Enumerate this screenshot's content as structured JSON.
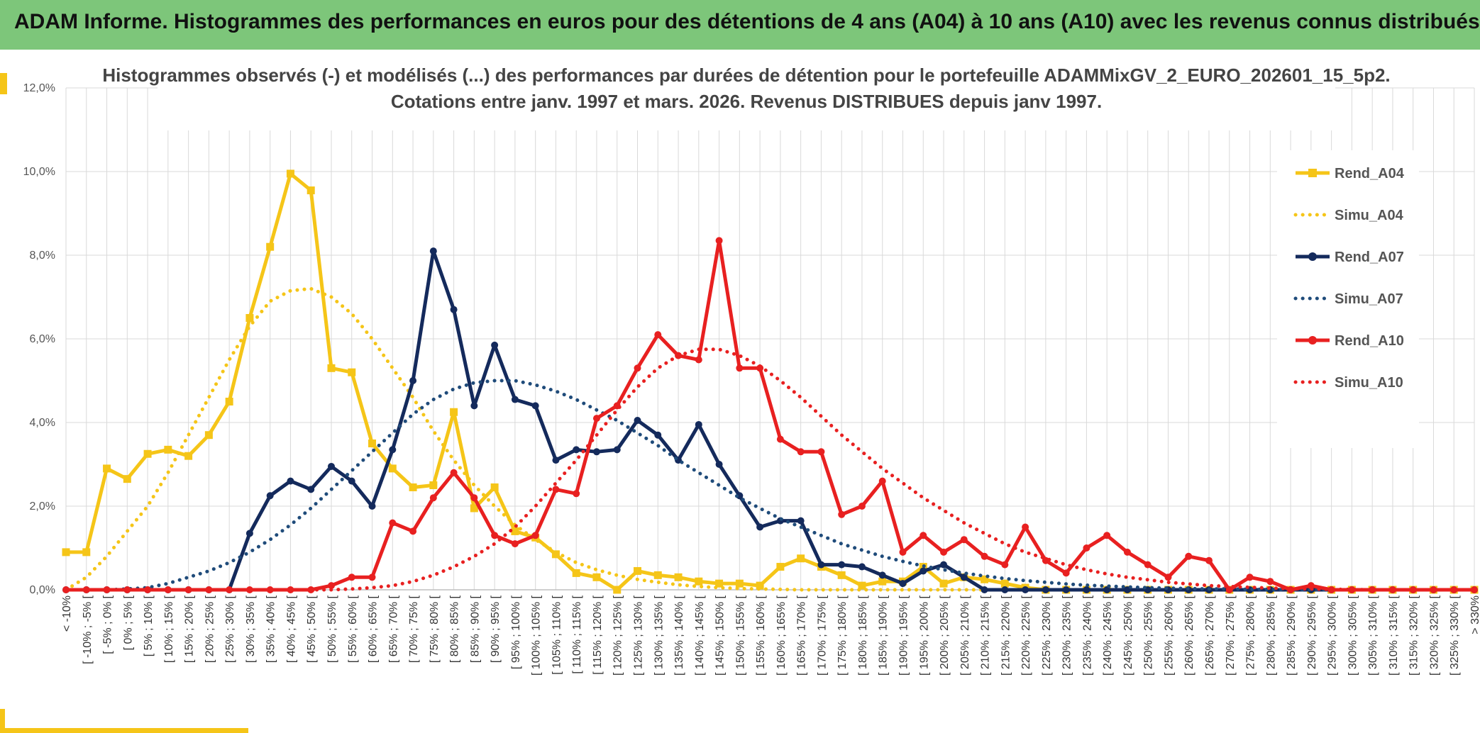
{
  "header": {
    "title": "ADAM Informe. Histogrammes des performances en euros pour des détentions de 4 ans (A04) à 10 ans (A10) avec les revenus connus distribués"
  },
  "chart_data": {
    "type": "line",
    "title": "Histogrammes observés (-) et modélisés (...) des performances par durées de détention pour le portefeuille ADAMMixGV_2_EURO_202601_15_5p2.",
    "subtitle": "Cotations entre janv. 1997 et mars. 2026. Revenus DISTRIBUES depuis janv 1997.",
    "ylim": [
      0,
      12
    ],
    "yticks": [
      "0,0%",
      "2,0%",
      "4,0%",
      "6,0%",
      "8,0%",
      "10,0%",
      "12,0%"
    ],
    "grid": true,
    "legend_position": "right",
    "categories": [
      "< -10%",
      "[ -10% ; -5% [",
      "[ -5% ; 0% [",
      "[ 0% ; 5% [",
      "[ 5% ; 10% [",
      "[ 10% ; 15% [",
      "[ 15% ; 20% [",
      "[ 20% ; 25% [",
      "[ 25% ; 30% [",
      "[ 30% ; 35% [",
      "[ 35% ; 40% [",
      "[ 40% ; 45% [",
      "[ 45% ; 50% [",
      "[ 50% ; 55% [",
      "[ 55% ; 60% [",
      "[ 60% ; 65% [",
      "[ 65% ; 70% [",
      "[ 70% ; 75% [",
      "[ 75% ; 80% [",
      "[ 80% ; 85% [",
      "[ 85% ; 90% [",
      "[ 90% ; 95% [",
      "[ 95% ; 100% [",
      "[ 100% ; 105% [",
      "[ 105% ; 110% [",
      "[ 110% ; 115% [",
      "[ 115% ; 120% [",
      "[ 120% ; 125% [",
      "[ 125% ; 130% [",
      "[ 130% ; 135% [",
      "[ 135% ; 140% [",
      "[ 140% ; 145% [",
      "[ 145% ; 150% [",
      "[ 150% ; 155% [",
      "[ 155% ; 160% [",
      "[ 160% ; 165% [",
      "[ 165% ; 170% [",
      "[ 170% ; 175% [",
      "[ 175% ; 180% [",
      "[ 180% ; 185% [",
      "[ 185% ; 190% [",
      "[ 190% ; 195% [",
      "[ 195% ; 200% [",
      "[ 200% ; 205% [",
      "[ 205% ; 210% [",
      "[ 210% ; 215% [",
      "[ 215% ; 220% [",
      "[ 220% ; 225% [",
      "[ 225% ; 230% [",
      "[ 230% ; 235% [",
      "[ 235% ; 240% [",
      "[ 240% ; 245% [",
      "[ 245% ; 250% [",
      "[ 250% ; 255% [",
      "[ 255% ; 260% [",
      "[ 260% ; 265% [",
      "[ 265% ; 270% [",
      "[ 270% ; 275% [",
      "[ 275% ; 280% [",
      "[ 280% ; 285% [",
      "[ 285% ; 290% [",
      "[ 290% ; 295% [",
      "[ 295% ; 300% [",
      "[ 300% ; 305% [",
      "[ 305% ; 310% [",
      "[ 310% ; 315% [",
      "[ 315% ; 320% [",
      "[ 320% ; 325% [",
      "[ 325% ; 330% [",
      "> 330%"
    ],
    "series": [
      {
        "name": "Rend_A04",
        "style": "solid",
        "marker": "square",
        "color": "#f5c518",
        "values": [
          0.9,
          0.9,
          2.9,
          2.65,
          3.25,
          3.35,
          3.2,
          3.7,
          4.5,
          6.5,
          8.2,
          9.95,
          9.55,
          5.3,
          5.2,
          3.5,
          2.9,
          2.45,
          2.5,
          4.25,
          1.95,
          2.45,
          1.4,
          1.25,
          0.85,
          0.4,
          0.3,
          0.0,
          0.45,
          0.35,
          0.3,
          0.2,
          0.15,
          0.15,
          0.1,
          0.55,
          0.75,
          0.55,
          0.35,
          0.1,
          0.2,
          0.2,
          0.55,
          0.15,
          0.3,
          0.25,
          0.15,
          0.05,
          0.0,
          0.0,
          0.0,
          0.0,
          0.0,
          0.0,
          0.0,
          0.0,
          0.0,
          0.0,
          0.0,
          0.0,
          0.0,
          0.0,
          0.0,
          0.0,
          0.0,
          0.0,
          0.0,
          0.0,
          0.0,
          0.0
        ]
      },
      {
        "name": "Simu_A04",
        "style": "dotted",
        "marker": "none",
        "color": "#f5c518",
        "values": [
          0.0,
          0.3,
          0.8,
          1.4,
          2.0,
          2.8,
          3.7,
          4.6,
          5.5,
          6.3,
          6.9,
          7.15,
          7.2,
          7.0,
          6.6,
          6.0,
          5.3,
          4.6,
          3.8,
          3.1,
          2.5,
          2.0,
          1.55,
          1.2,
          0.9,
          0.65,
          0.48,
          0.35,
          0.25,
          0.18,
          0.12,
          0.08,
          0.05,
          0.03,
          0.02,
          0.01,
          0.0,
          0.0,
          0.0,
          0.0,
          0.0,
          0.0,
          0.0,
          0.0,
          0.0,
          0.0,
          0.0,
          0.0,
          0.0,
          0.0,
          0.0,
          0.0,
          0.0,
          0.0,
          0.0,
          0.0,
          0.0,
          0.0,
          0.0,
          0.0,
          0.0,
          0.0,
          0.0,
          0.0,
          0.0,
          0.0,
          0.0,
          0.0,
          0.0,
          0.0
        ]
      },
      {
        "name": "Rend_A07",
        "style": "solid",
        "marker": "circle",
        "color": "#142a5c",
        "values": [
          0.0,
          0.0,
          0.0,
          0.0,
          0.0,
          0.0,
          0.0,
          0.0,
          0.0,
          1.35,
          2.25,
          2.6,
          2.4,
          2.95,
          2.6,
          2.0,
          3.35,
          5.0,
          8.1,
          6.7,
          4.4,
          5.85,
          4.55,
          4.4,
          3.1,
          3.35,
          3.3,
          3.35,
          4.05,
          3.7,
          3.1,
          3.95,
          3.0,
          2.25,
          1.5,
          1.65,
          1.65,
          0.6,
          0.6,
          0.55,
          0.35,
          0.15,
          0.45,
          0.6,
          0.3,
          0.0,
          0.0,
          0.0,
          0.0,
          0.0,
          0.0,
          0.0,
          0.0,
          0.0,
          0.0,
          0.0,
          0.0,
          0.0,
          0.0,
          0.0,
          0.0,
          0.0,
          0.0,
          0.0,
          0.0,
          0.0,
          0.0,
          0.0,
          0.0,
          0.0
        ]
      },
      {
        "name": "Simu_A07",
        "style": "dotted",
        "marker": "none",
        "color": "#1f4b7a",
        "values": [
          0.0,
          0.0,
          0.0,
          0.02,
          0.05,
          0.15,
          0.3,
          0.45,
          0.65,
          0.9,
          1.2,
          1.55,
          1.95,
          2.4,
          2.85,
          3.3,
          3.75,
          4.2,
          4.55,
          4.8,
          4.95,
          5.0,
          5.0,
          4.9,
          4.75,
          4.55,
          4.3,
          4.05,
          3.75,
          3.45,
          3.1,
          2.8,
          2.5,
          2.2,
          1.95,
          1.7,
          1.5,
          1.3,
          1.1,
          0.95,
          0.8,
          0.68,
          0.57,
          0.48,
          0.4,
          0.33,
          0.27,
          0.22,
          0.18,
          0.14,
          0.11,
          0.09,
          0.07,
          0.05,
          0.04,
          0.03,
          0.02,
          0.02,
          0.01,
          0.01,
          0.0,
          0.0,
          0.0,
          0.0,
          0.0,
          0.0,
          0.0,
          0.0,
          0.0,
          0.0
        ]
      },
      {
        "name": "Rend_A10",
        "style": "solid",
        "marker": "circle",
        "color": "#e82020",
        "values": [
          0.0,
          0.0,
          0.0,
          0.0,
          0.0,
          0.0,
          0.0,
          0.0,
          0.0,
          0.0,
          0.0,
          0.0,
          0.0,
          0.1,
          0.3,
          0.3,
          1.6,
          1.4,
          2.2,
          2.8,
          2.2,
          1.3,
          1.1,
          1.3,
          2.4,
          2.3,
          4.1,
          4.4,
          5.3,
          6.1,
          5.6,
          5.5,
          8.35,
          5.3,
          5.3,
          3.6,
          3.3,
          3.3,
          1.8,
          2.0,
          2.6,
          0.9,
          1.3,
          0.9,
          1.2,
          0.8,
          0.6,
          1.5,
          0.7,
          0.4,
          1.0,
          1.3,
          0.9,
          0.6,
          0.3,
          0.8,
          0.7,
          0.0,
          0.3,
          0.2,
          0.0,
          0.1,
          0.0,
          0.0,
          0.0,
          0.0,
          0.0,
          0.0,
          0.0,
          0.0
        ]
      },
      {
        "name": "Simu_A10",
        "style": "dotted",
        "marker": "none",
        "color": "#e82020",
        "values": [
          0.0,
          0.0,
          0.0,
          0.0,
          0.0,
          0.0,
          0.0,
          0.0,
          0.0,
          0.0,
          0.0,
          0.0,
          0.0,
          0.0,
          0.02,
          0.05,
          0.1,
          0.2,
          0.35,
          0.55,
          0.8,
          1.1,
          1.5,
          2.0,
          2.55,
          3.1,
          3.7,
          4.3,
          4.85,
          5.3,
          5.6,
          5.75,
          5.75,
          5.6,
          5.35,
          5.0,
          4.6,
          4.15,
          3.7,
          3.3,
          2.9,
          2.55,
          2.2,
          1.9,
          1.6,
          1.35,
          1.1,
          0.9,
          0.75,
          0.6,
          0.48,
          0.38,
          0.3,
          0.24,
          0.18,
          0.14,
          0.1,
          0.08,
          0.06,
          0.04,
          0.03,
          0.02,
          0.01,
          0.01,
          0.0,
          0.0,
          0.0,
          0.0,
          0.0,
          0.0
        ]
      }
    ]
  }
}
